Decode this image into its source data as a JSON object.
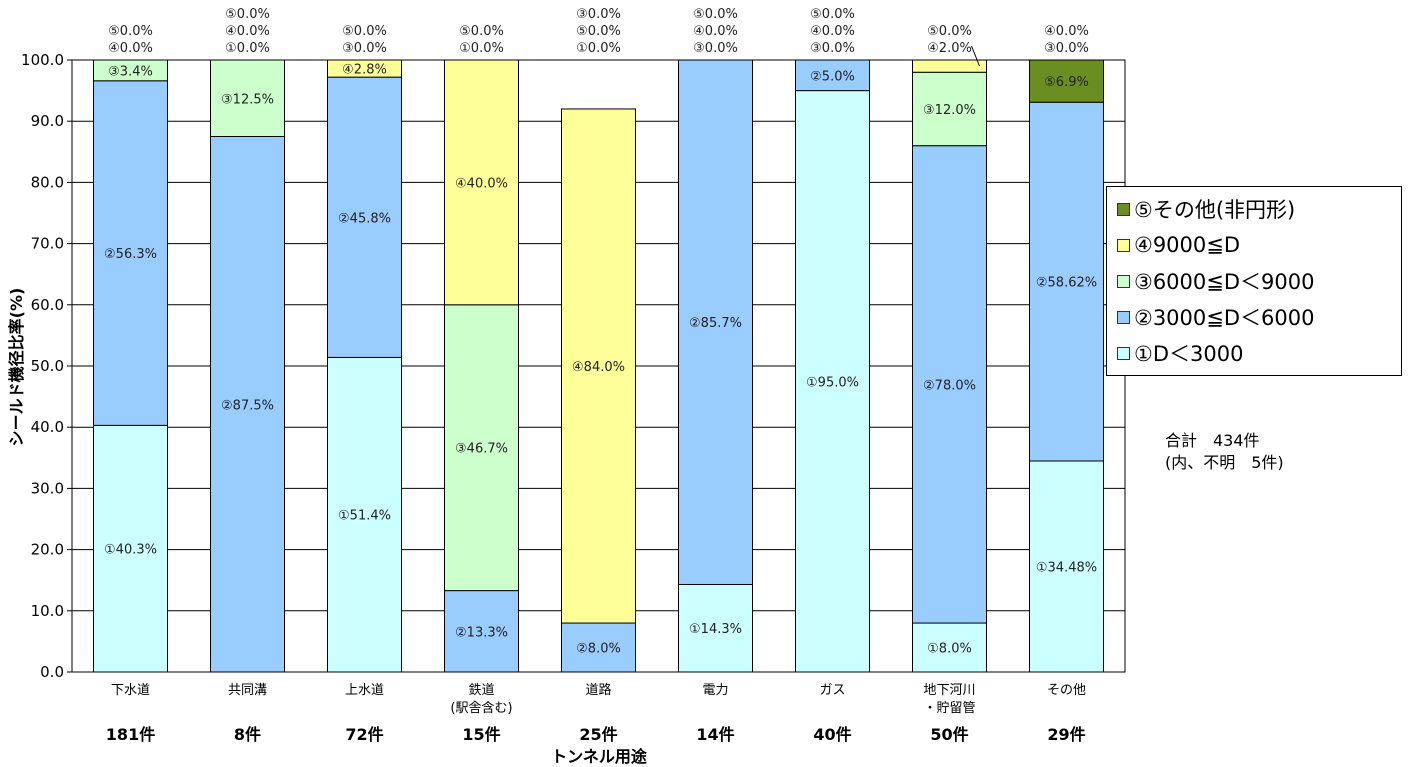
{
  "chart_data": {
    "type": "bar",
    "stacked": true,
    "ylabel": "シールド機径比率(%)",
    "xlabel": "トンネル用途",
    "ylim": [
      0,
      100
    ],
    "yticks": [
      "0.0",
      "10.0",
      "20.0",
      "30.0",
      "40.0",
      "50.0",
      "60.0",
      "70.0",
      "80.0",
      "90.0",
      "100.0"
    ],
    "categories": [
      {
        "name": "下水道",
        "name2": "",
        "count": "181件"
      },
      {
        "name": "共同溝",
        "name2": "",
        "count": "8件"
      },
      {
        "name": "上水道",
        "name2": "",
        "count": "72件"
      },
      {
        "name": "鉄道",
        "name2": "(駅舎含む)",
        "count": "15件"
      },
      {
        "name": "道路",
        "name2": "",
        "count": "25件"
      },
      {
        "name": "電力",
        "name2": "",
        "count": "14件"
      },
      {
        "name": "ガス",
        "name2": "",
        "count": "40件"
      },
      {
        "name": "地下河川",
        "name2": "・貯留管",
        "count": "50件"
      },
      {
        "name": "その他",
        "name2": "",
        "count": "29件"
      }
    ],
    "series": [
      {
        "name": "①D＜3000",
        "color": "#ccffff",
        "values": [
          40.3,
          0,
          51.4,
          0,
          0,
          14.3,
          95.0,
          8.0,
          34.48
        ],
        "labels": [
          "①40.3%",
          "",
          "①51.4%",
          "",
          "",
          "①14.3%",
          "①95.0%",
          "①8.0%",
          "①34.48%"
        ]
      },
      {
        "name": "②3000≦D＜6000",
        "color": "#99ccff",
        "values": [
          56.3,
          87.5,
          45.8,
          13.3,
          8.0,
          85.7,
          5.0,
          78.0,
          58.62
        ],
        "labels": [
          "②56.3%",
          "②87.5%",
          "②45.8%",
          "②13.3%",
          "②8.0%",
          "②85.7%",
          "②5.0%",
          "②78.0%",
          "②58.62%"
        ]
      },
      {
        "name": "③6000≦D＜9000",
        "color": "#ccffcc",
        "values": [
          3.4,
          12.5,
          0,
          46.7,
          0,
          0,
          0,
          12.0,
          0
        ],
        "labels": [
          "③3.4%",
          "③12.5%",
          "",
          "③46.7%",
          "",
          "",
          "",
          "③12.0%",
          ""
        ]
      },
      {
        "name": "④9000≦D",
        "color": "#ffff99",
        "values": [
          0,
          0,
          2.8,
          40.0,
          84.0,
          0,
          0,
          2.0,
          0
        ],
        "labels": [
          "",
          "",
          "④2.8%",
          "④40.0%",
          "④84.0%",
          "",
          "",
          "",
          ""
        ]
      },
      {
        "name": "⑤その他(非円形)",
        "color": "#6b8e23",
        "values": [
          0,
          0,
          0,
          0,
          0,
          0,
          0,
          0,
          6.9
        ],
        "labels": [
          "",
          "",
          "",
          "",
          "",
          "",
          "",
          "",
          "⑤6.9%"
        ]
      }
    ],
    "top_labels": [
      [
        "⑤0.0%",
        "④0.0%"
      ],
      [
        "⑤0.0%",
        "④0.0%",
        "①0.0%"
      ],
      [
        "⑤0.0%",
        "③0.0%"
      ],
      [
        "⑤0.0%",
        "①0.0%"
      ],
      [
        "③0.0%",
        "⑤0.0%",
        "①0.0%"
      ],
      [
        "⑤0.0%",
        "④0.0%",
        "③0.0%"
      ],
      [
        "⑤0.0%",
        "④0.0%",
        "③0.0%"
      ],
      [
        "⑤0.0%",
        "④2.0%"
      ],
      [
        "④0.0%",
        "③0.0%"
      ]
    ],
    "legend": {
      "position": "right",
      "items": [
        {
          "label": "⑤その他(非円形)",
          "color": "#6b8e23"
        },
        {
          "label": "④9000≦D",
          "color": "#ffff99"
        },
        {
          "label": "③6000≦D＜9000",
          "color": "#ccffcc"
        },
        {
          "label": "②3000≦D＜6000",
          "color": "#99ccff"
        },
        {
          "label": "①D＜3000",
          "color": "#ccffff"
        }
      ]
    },
    "note": {
      "line1": "合計　434件",
      "line2": "(内、不明　5件)"
    }
  }
}
